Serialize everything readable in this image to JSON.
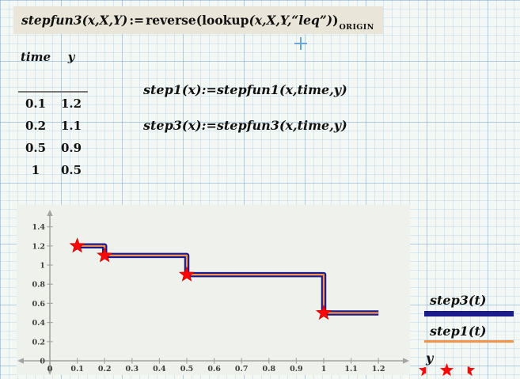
{
  "main_formula": {
    "lhs": "stepfun3(x,X,Y)",
    "assign": ":=",
    "fn": "reverse",
    "open": "(",
    "inner_fn": "lookup",
    "inner_args": "(x,X,Y,“leq”)",
    "close": ")",
    "subscript": "ORIGIN"
  },
  "cursor": {
    "type": "insertion-cross"
  },
  "table": {
    "headers": [
      "time",
      "y"
    ],
    "rows": [
      [
        "0.1",
        "1.2"
      ],
      [
        "0.2",
        "1.1"
      ],
      [
        "0.5",
        "0.9"
      ],
      [
        "1",
        "0.5"
      ]
    ]
  },
  "definitions": {
    "step1": "step1(x):=stepfun1(x,time,y)",
    "step3": "step3(x):=stepfun3(x,time,y)"
  },
  "chart_data": {
    "type": "line",
    "style": "step-after",
    "title": "",
    "xlabel": "",
    "ylabel": "",
    "xlim": [
      0,
      1.25
    ],
    "ylim": [
      0,
      1.5
    ],
    "x_ticks": [
      0,
      0.1,
      0.2,
      0.3,
      0.4,
      0.5,
      0.6,
      0.7,
      0.8,
      0.9,
      1,
      1.1,
      1.2
    ],
    "y_ticks": [
      0,
      0.2,
      0.4,
      0.6,
      0.8,
      1,
      1.2,
      1.4
    ],
    "grid": false,
    "legend_position": "right-outside",
    "plot_bg": "#eef1ec",
    "axis_color": "#a3a3a3",
    "tick_label_color": "#3c3c3c",
    "series": [
      {
        "name": "step3(t)",
        "type": "step-line",
        "color": "#1b1b8c",
        "stroke_width": 6.5,
        "points": [
          [
            0.1,
            1.2
          ],
          [
            0.2,
            1.2
          ],
          [
            0.2,
            1.1
          ],
          [
            0.5,
            1.1
          ],
          [
            0.5,
            0.9
          ],
          [
            1,
            0.9
          ],
          [
            1,
            0.5
          ],
          [
            1.2,
            0.5
          ]
        ]
      },
      {
        "name": "step1(t)",
        "type": "step-line",
        "color": "#f2944e",
        "stroke_width": 2.2,
        "points": [
          [
            0.1,
            1.2
          ],
          [
            0.2,
            1.2
          ],
          [
            0.2,
            1.1
          ],
          [
            0.5,
            1.1
          ],
          [
            0.5,
            0.9
          ],
          [
            1,
            0.9
          ],
          [
            1,
            0.5
          ],
          [
            1.2,
            0.5
          ]
        ]
      },
      {
        "name": "y",
        "type": "scatter",
        "marker": "star",
        "color": "#fb0707",
        "marker_edge": "#cf0000",
        "points": [
          [
            0.1,
            1.2
          ],
          [
            0.2,
            1.1
          ],
          [
            0.5,
            0.9
          ],
          [
            1,
            0.5
          ]
        ]
      }
    ],
    "data_points": {
      "time": [
        0.1,
        0.2,
        0.5,
        1
      ],
      "y": [
        1.2,
        1.1,
        0.9,
        0.5
      ]
    }
  }
}
